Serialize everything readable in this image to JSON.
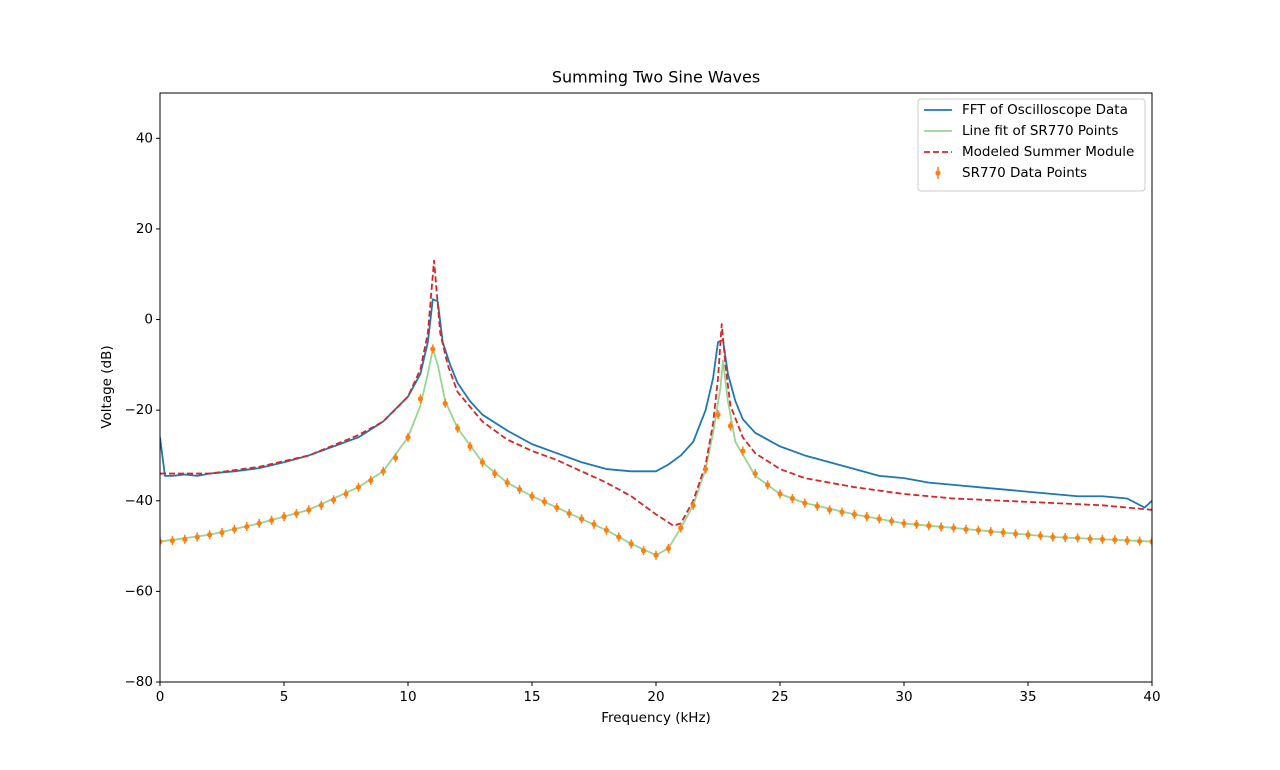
{
  "chart_data": {
    "type": "line",
    "title": "Summing Two Sine Waves",
    "x_label": "Frequency (kHz)",
    "y_label": "Voltage (dB)",
    "xlim": [
      0,
      40
    ],
    "ylim": [
      -80,
      50
    ],
    "xticks": [
      0,
      5,
      10,
      15,
      20,
      25,
      30,
      35,
      40
    ],
    "yticks": [
      {
        "value": -80,
        "label": "−80"
      },
      {
        "value": -60,
        "label": "−60"
      },
      {
        "value": -40,
        "label": "−40"
      },
      {
        "value": -20,
        "label": "−20"
      },
      0,
      20,
      40
    ],
    "legend": "upper right",
    "series": [
      {
        "name": "FFT of Oscilloscope Data",
        "color": "#1f77b4",
        "style": "solid",
        "x": [
          0,
          0.2,
          0.5,
          1,
          1.5,
          2,
          3,
          4,
          5,
          6,
          7,
          8,
          9,
          10,
          10.5,
          10.8,
          11,
          11.2,
          11.4,
          11.7,
          12,
          12.5,
          13,
          14,
          15,
          16,
          17,
          18,
          19,
          20,
          20.5,
          21,
          21.5,
          22,
          22.3,
          22.5,
          22.7,
          22.9,
          23.2,
          23.5,
          24,
          25,
          26,
          27,
          28,
          29,
          30,
          31,
          32,
          33,
          34,
          35,
          36,
          37,
          38,
          39,
          39.7,
          40
        ],
        "values": [
          -26,
          -34.5,
          -34.5,
          -34.2,
          -34.5,
          -34,
          -33.5,
          -32.8,
          -31.5,
          -30,
          -28,
          -26,
          -22.5,
          -17,
          -12,
          -5,
          4.5,
          4,
          -5,
          -10,
          -14,
          -18,
          -21,
          -24.5,
          -27.5,
          -29.5,
          -31.5,
          -33,
          -33.5,
          -33.5,
          -32,
          -30,
          -27,
          -20,
          -13,
          -5,
          -4.5,
          -12,
          -18,
          -22,
          -25,
          -28,
          -30,
          -31.5,
          -33,
          -34.5,
          -35,
          -36,
          -36.5,
          -37,
          -37.5,
          -38,
          -38.5,
          -39,
          -39,
          -39.5,
          -41.5,
          -40
        ]
      },
      {
        "name": "Line fit of SR770 Points",
        "color": "#98d593",
        "style": "solid",
        "x": [
          0,
          2,
          4,
          6,
          8,
          9,
          10,
          10.5,
          10.8,
          11,
          11.2,
          11.5,
          12,
          13,
          14,
          15,
          16,
          17,
          18,
          19,
          20,
          20.5,
          21,
          21.5,
          22,
          22.3,
          22.6,
          22.7,
          22.9,
          23.2,
          24,
          25,
          26,
          28,
          30,
          32,
          34,
          36,
          38,
          40
        ],
        "values": [
          -49,
          -47.5,
          -45,
          -42,
          -37,
          -33.5,
          -26,
          -19,
          -12,
          -6.5,
          -10,
          -18,
          -24,
          -31.5,
          -36,
          -39,
          -41.5,
          -44,
          -46.5,
          -49.5,
          -52,
          -50.5,
          -46,
          -41,
          -33,
          -25,
          -15,
          -9,
          -18,
          -27,
          -34.5,
          -38.5,
          -40.5,
          -43,
          -45,
          -46,
          -47,
          -48,
          -48.5,
          -49
        ]
      },
      {
        "name": "Modeled Summer Module",
        "color": "#d62728",
        "style": "dashed",
        "x": [
          0,
          2,
          4,
          6,
          8,
          9,
          10,
          10.5,
          10.8,
          11.05,
          11.3,
          11.6,
          12,
          13,
          14,
          15,
          16,
          17,
          18,
          19,
          20,
          20.7,
          21,
          21.5,
          22,
          22.3,
          22.5,
          22.65,
          22.8,
          23,
          23.5,
          24,
          25,
          26,
          28,
          30,
          32,
          34,
          36,
          38,
          40
        ],
        "values": [
          -34,
          -34,
          -32.5,
          -30,
          -25.5,
          -22.5,
          -17,
          -11,
          -3,
          13,
          -3,
          -10,
          -16,
          -22.5,
          -26.5,
          -29,
          -31,
          -33.5,
          -36,
          -39,
          -43,
          -45.5,
          -45,
          -40,
          -32,
          -23,
          -13,
          -1,
          -10,
          -19,
          -26,
          -29.5,
          -33,
          -35,
          -37,
          -38.5,
          -39.5,
          -40,
          -40.5,
          -41,
          -42
        ]
      },
      {
        "name": "SR770 Data Points",
        "color": "#ff7f0e",
        "kind": "errorbar",
        "error": 1,
        "x": [
          0,
          0.5,
          1,
          1.5,
          2,
          2.5,
          3,
          3.5,
          4,
          4.5,
          5,
          5.5,
          6,
          6.5,
          7,
          7.5,
          8,
          8.5,
          9,
          9.5,
          10,
          10.5,
          11,
          11.5,
          12,
          12.5,
          13,
          13.5,
          14,
          14.5,
          15,
          15.5,
          16,
          16.5,
          17,
          17.5,
          18,
          18.5,
          19,
          19.5,
          20,
          20.5,
          21,
          21.5,
          22,
          22.5,
          23,
          23.5,
          24,
          24.5,
          25,
          25.5,
          26,
          26.5,
          27,
          27.5,
          28,
          28.5,
          29,
          29.5,
          30,
          30.5,
          31,
          31.5,
          32,
          32.5,
          33,
          33.5,
          34,
          34.5,
          35,
          35.5,
          36,
          36.5,
          37,
          37.5,
          38,
          38.5,
          39,
          39.5,
          40
        ],
        "values": [
          -49,
          -48.8,
          -48.5,
          -48,
          -47.5,
          -47,
          -46.3,
          -45.7,
          -45,
          -44.3,
          -43.5,
          -42.8,
          -42,
          -41,
          -39.8,
          -38.5,
          -37,
          -35.5,
          -33.5,
          -30.5,
          -26,
          -17.5,
          -6.5,
          -18.5,
          -24,
          -28,
          -31.5,
          -34,
          -36,
          -37.5,
          -39,
          -40.2,
          -41.5,
          -42.8,
          -44,
          -45.2,
          -46.5,
          -48,
          -49.5,
          -51,
          -52,
          -50.5,
          -46,
          -41,
          -33,
          -21,
          -23.5,
          -29,
          -34,
          -36.5,
          -38.5,
          -39.5,
          -40.5,
          -41.2,
          -42,
          -42.5,
          -43,
          -43.5,
          -44,
          -44.5,
          -45,
          -45.2,
          -45.5,
          -45.8,
          -46,
          -46.3,
          -46.5,
          -46.8,
          -47,
          -47.3,
          -47.5,
          -47.7,
          -48,
          -48.1,
          -48.2,
          -48.4,
          -48.5,
          -48.6,
          -48.8,
          -48.9,
          -49
        ]
      }
    ]
  }
}
